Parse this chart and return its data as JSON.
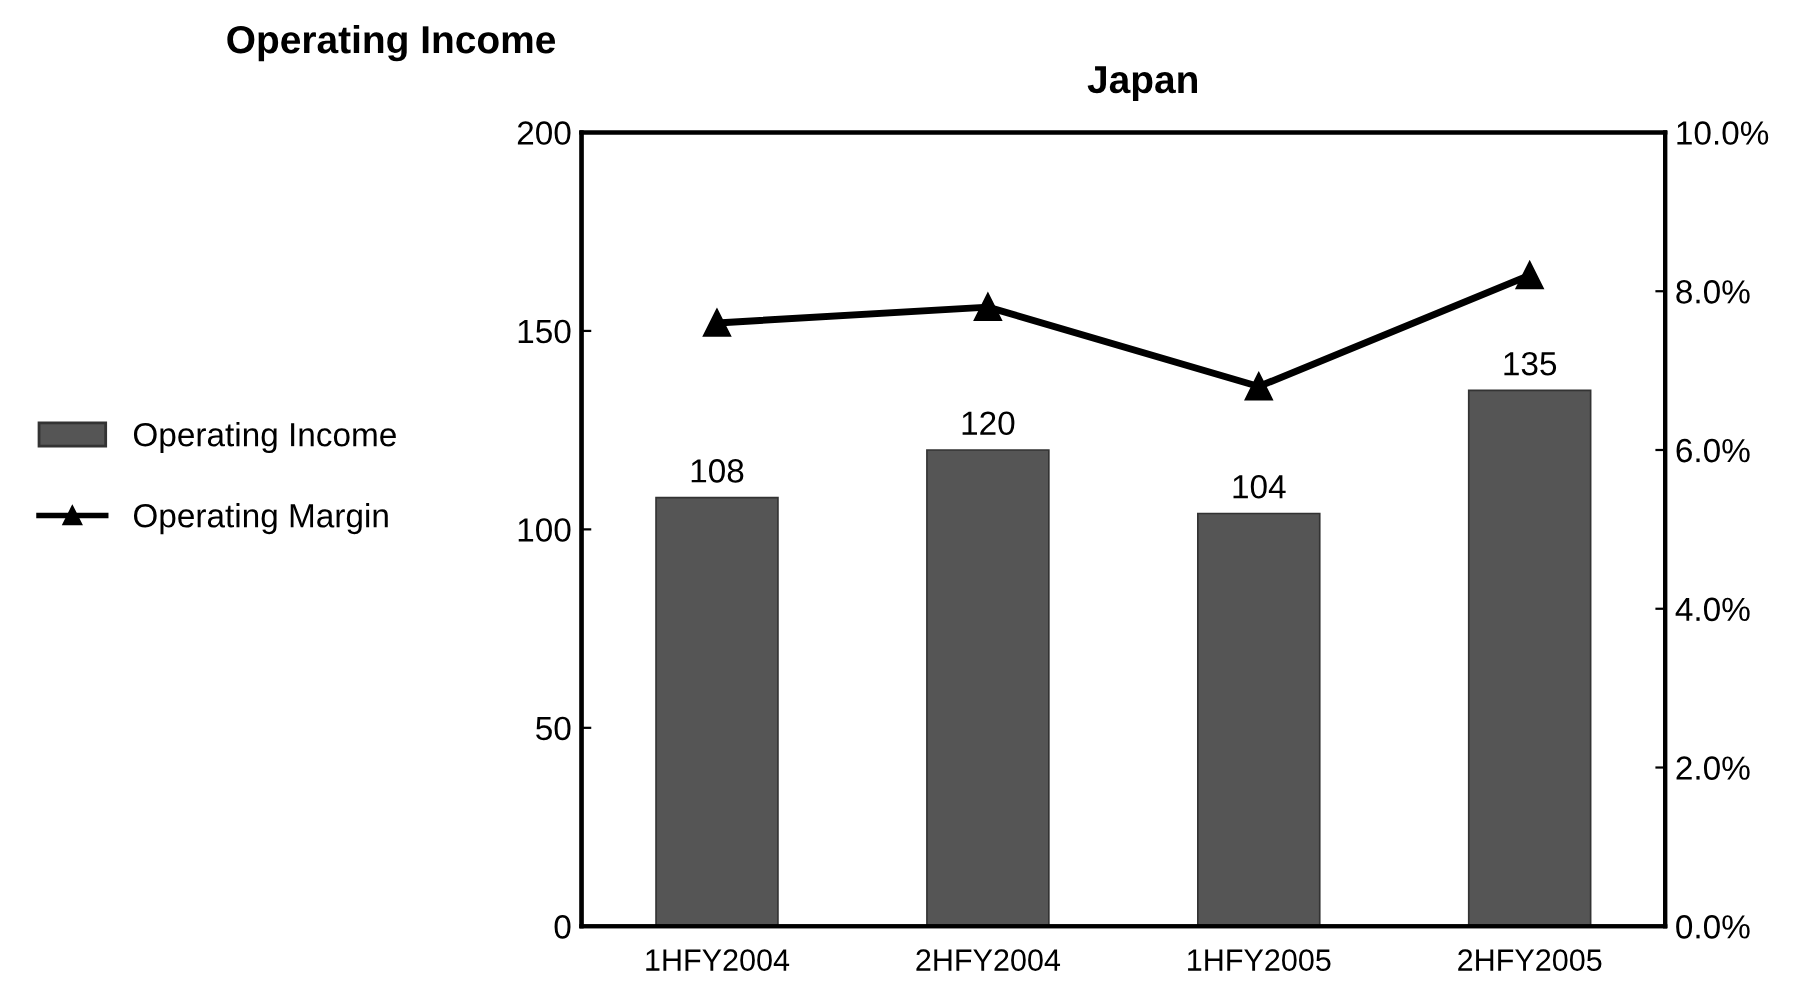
{
  "chart_data": {
    "type": "bar",
    "title": "Operating Income",
    "subtitle": "Japan",
    "categories": [
      "1HFY2004",
      "2HFY2004",
      "1HFY2005",
      "2HFY2005"
    ],
    "series": [
      {
        "name": "Operating Income",
        "color": "#555555",
        "values": [
          108,
          120,
          104,
          135
        ],
        "value_labels": [
          "108",
          "120",
          "104",
          "135"
        ]
      },
      {
        "name": "Operating Margin",
        "type": "line",
        "axis": "y2",
        "color": "#000000",
        "values": [
          7.6,
          7.8,
          6.8,
          8.2
        ],
        "marker": "triangle"
      }
    ],
    "ylim": [
      0,
      200
    ],
    "yticks": [
      0,
      50,
      100,
      150,
      200
    ],
    "y2lim": [
      0,
      10
    ],
    "y2ticks": [
      {
        "value": 0,
        "label": "0.0%"
      },
      {
        "value": 2,
        "label": "2.0%"
      },
      {
        "value": 4,
        "label": "4.0%"
      },
      {
        "value": 6,
        "label": "6.0%"
      },
      {
        "value": 8,
        "label": "8.0%"
      },
      {
        "value": 10,
        "label": "10.0%"
      }
    ],
    "grid": false,
    "legend": "left"
  }
}
